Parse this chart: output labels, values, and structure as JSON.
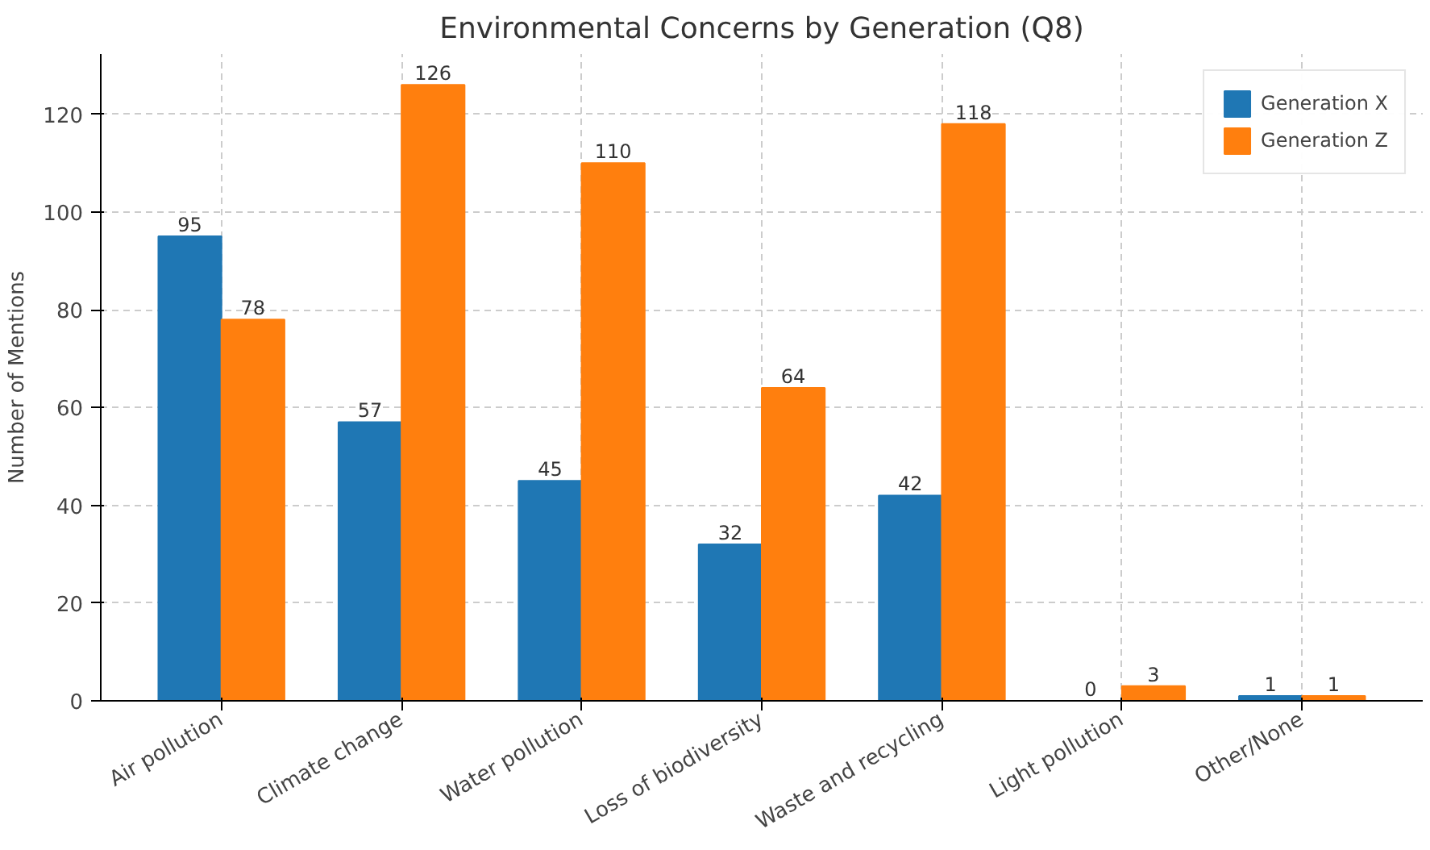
{
  "chart_data": {
    "type": "bar",
    "title": "Environmental Concerns by Generation (Q8)",
    "ylabel": "Number of Mentions",
    "categories": [
      "Air pollution",
      "Climate change",
      "Water pollution",
      "Loss of biodiversity",
      "Waste and recycling",
      "Light pollution",
      "Other/None"
    ],
    "series": [
      {
        "name": "Generation X",
        "color": "#1f77b4",
        "values": [
          95,
          57,
          45,
          32,
          42,
          0,
          1
        ]
      },
      {
        "name": "Generation Z",
        "color": "#ff7f0e",
        "values": [
          78,
          126,
          110,
          64,
          118,
          3,
          1
        ]
      }
    ],
    "ylim": [
      0,
      132.3
    ],
    "yticks": [
      0,
      20,
      40,
      60,
      80,
      100,
      120
    ],
    "grid": true,
    "legend": "top right",
    "data_labels": true
  }
}
